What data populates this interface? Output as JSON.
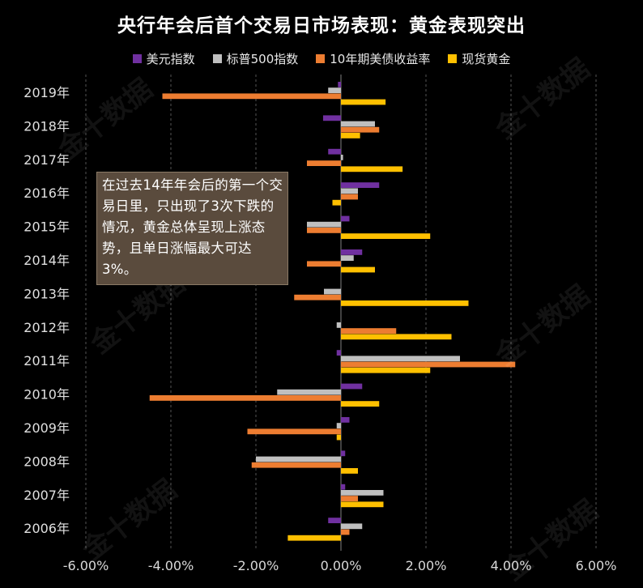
{
  "chart_data": {
    "type": "bar",
    "orientation": "horizontal",
    "title": "央行年会后首个交易日市场表现：黄金表现突出",
    "categories": [
      "2019年",
      "2018年",
      "2017年",
      "2016年",
      "2015年",
      "2014年",
      "2013年",
      "2012年",
      "2011年",
      "2010年",
      "2009年",
      "2008年",
      "2007年",
      "2006年"
    ],
    "series": [
      {
        "name": "美元指数",
        "color": "#7030a0",
        "values": [
          -0.07,
          -0.42,
          -0.3,
          0.9,
          0.2,
          0.5,
          0.0,
          0.0,
          -0.1,
          0.5,
          0.2,
          0.1,
          0.1,
          -0.3
        ]
      },
      {
        "name": "标普500指数",
        "color": "#bfbfbf",
        "values": [
          -0.3,
          0.8,
          0.05,
          0.4,
          -0.8,
          0.3,
          -0.4,
          -0.1,
          2.8,
          -1.5,
          -0.1,
          -2.0,
          1.0,
          0.5
        ]
      },
      {
        "name": "10年期美债收益率",
        "color": "#ed7d31",
        "values": [
          -4.2,
          0.9,
          -0.8,
          0.4,
          -0.8,
          -0.8,
          -1.1,
          1.3,
          4.1,
          -4.5,
          -2.2,
          -2.1,
          0.4,
          0.2
        ]
      },
      {
        "name": "现货黄金",
        "color": "#ffc000",
        "values": [
          1.05,
          0.45,
          1.45,
          -0.2,
          2.1,
          0.8,
          3.0,
          2.6,
          2.1,
          0.9,
          -0.1,
          0.4,
          1.0,
          -1.25
        ]
      }
    ],
    "xlim": [
      -6,
      6
    ],
    "xticks": [
      "-6.00%",
      "-4.00%",
      "-2.00%",
      "0.00%",
      "2.00%",
      "4.00%",
      "6.00%"
    ],
    "grid": "vertical dashed",
    "legend_position": "top"
  },
  "annotation": "在过去14年年会后的第一个交易日里，只出现了3次下跌的情况，黄金总体呈现上涨态势，且单日涨幅最大可达3%。",
  "watermark": "金十数据"
}
